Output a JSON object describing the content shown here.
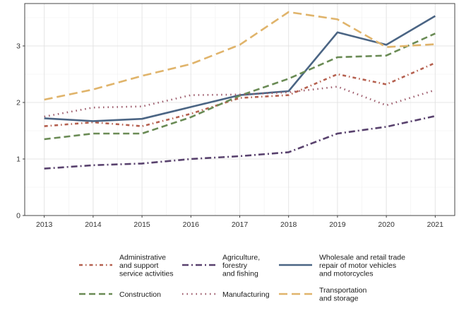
{
  "chart_data": {
    "type": "line",
    "title": "",
    "xlabel": "",
    "ylabel": "",
    "x": [
      2013,
      2014,
      2015,
      2016,
      2017,
      2018,
      2019,
      2020,
      2021
    ],
    "xlim": [
      2012.6,
      2021.4
    ],
    "ylim": [
      0,
      3.75
    ],
    "yticks": [
      0,
      1,
      2,
      3
    ],
    "grid": true,
    "legend_position": "bottom",
    "series": [
      {
        "name": "Administrative and support service activities",
        "legend_lines": [
          "Administrative",
          "and support",
          "service activities"
        ],
        "color": "#b5604f",
        "dash": "dash-dot",
        "values": [
          1.58,
          1.65,
          1.58,
          1.8,
          2.08,
          2.13,
          2.5,
          2.32,
          2.7
        ]
      },
      {
        "name": "Agriculture, forestry and fishing",
        "legend_lines": [
          "Agriculture,",
          "forestry",
          "and fishing"
        ],
        "color": "#59426e",
        "dash": "long-dash-dot",
        "values": [
          0.83,
          0.89,
          0.92,
          1.0,
          1.05,
          1.12,
          1.45,
          1.57,
          1.76
        ]
      },
      {
        "name": "Wholesale and retail trade repair of motor vehicles and motorcycles",
        "legend_lines": [
          "Wholesale and retail trade",
          "repair of motor vehicles",
          "and motorcycles"
        ],
        "color": "#4b6584",
        "dash": "solid",
        "values": [
          1.72,
          1.67,
          1.71,
          1.92,
          2.13,
          2.2,
          3.24,
          3.02,
          3.53
        ]
      },
      {
        "name": "Construction",
        "legend_lines": [
          "Construction"
        ],
        "color": "#6a8b55",
        "dash": "dash",
        "values": [
          1.35,
          1.45,
          1.45,
          1.74,
          2.12,
          2.42,
          2.8,
          2.83,
          3.22
        ]
      },
      {
        "name": "Manufacturing",
        "legend_lines": [
          "Manufacturing"
        ],
        "color": "#9c5a6a",
        "dash": "dot",
        "values": [
          1.75,
          1.91,
          1.93,
          2.13,
          2.14,
          2.18,
          2.28,
          1.95,
          2.22
        ]
      },
      {
        "name": "Transportation and storage",
        "legend_lines": [
          "Transportation",
          "and storage"
        ],
        "color": "#e0b46b",
        "dash": "long-dash",
        "values": [
          2.05,
          2.23,
          2.47,
          2.68,
          3.02,
          3.6,
          3.47,
          2.98,
          3.03
        ]
      }
    ]
  }
}
